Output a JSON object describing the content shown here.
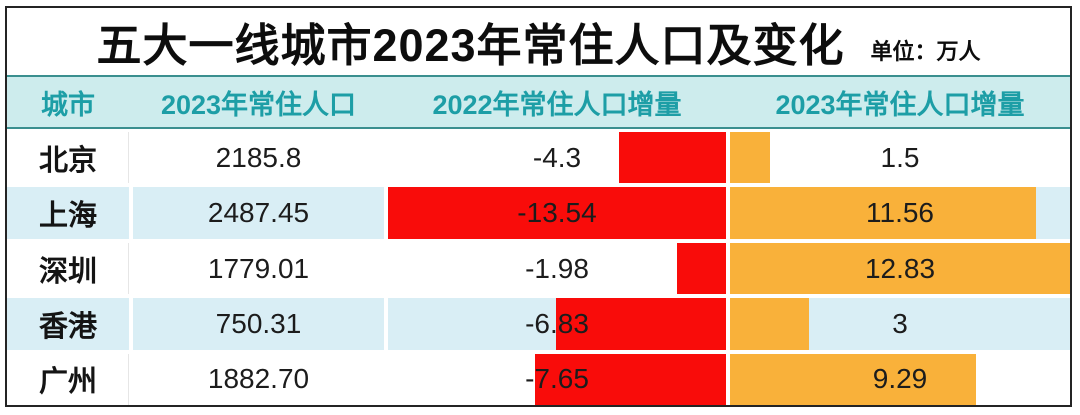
{
  "title": {
    "text": "五大一线城市2023年常住人口及变化",
    "unit": "单位：万人"
  },
  "table": {
    "headers": [
      "城市",
      "2023年常住人口",
      "2022年常住人口增量",
      "2023年常住人口增量"
    ],
    "max_abs_2022": 13.54,
    "max_abs_2023": 12.83,
    "rows": [
      {
        "city": "北京",
        "population": "2185.8",
        "inc2022": -4.3,
        "inc2022_label": "-4.3",
        "inc2023": 1.5,
        "inc2023_label": "1.5"
      },
      {
        "city": "上海",
        "population": "2487.45",
        "inc2022": -13.54,
        "inc2022_label": "-13.54",
        "inc2023": 11.56,
        "inc2023_label": "11.56"
      },
      {
        "city": "深圳",
        "population": "1779.01",
        "inc2022": -1.98,
        "inc2022_label": "-1.98",
        "inc2023": 12.83,
        "inc2023_label": "12.83"
      },
      {
        "city": "香港",
        "population": "750.31",
        "inc2022": -6.83,
        "inc2022_label": "-6.83",
        "inc2023": 3,
        "inc2023_label": "3"
      },
      {
        "city": "广州",
        "population": "1882.70",
        "inc2022": -7.65,
        "inc2022_label": "-7.65",
        "inc2023": 9.29,
        "inc2023_label": "9.29"
      }
    ]
  },
  "colors": {
    "negative_bar": "#f90c0a",
    "positive_bar": "#f9b13a",
    "header_bg": "#cdeced",
    "header_text": "#1d9ea6",
    "header_border": "#3a8f8f",
    "alt_row_bg": "#d9eef5",
    "outer_border": "#242424"
  },
  "chart_data": {
    "type": "table",
    "title": "五大一线城市2023年常住人口及变化",
    "unit": "万人",
    "columns": [
      "城市",
      "2023年常住人口",
      "2022年常住人口增量",
      "2023年常住人口增量"
    ],
    "categories": [
      "北京",
      "上海",
      "深圳",
      "香港",
      "广州"
    ],
    "series": [
      {
        "name": "2023年常住人口",
        "values": [
          2185.8,
          2487.45,
          1779.01,
          750.31,
          1882.7
        ],
        "display": "text"
      },
      {
        "name": "2022年常住人口增量",
        "values": [
          -4.3,
          -13.54,
          -1.98,
          -6.83,
          -7.65
        ],
        "display": "bar-right-anchored",
        "bar_color": "#f90c0a",
        "scale_max_abs": 13.54
      },
      {
        "name": "2023年常住人口增量",
        "values": [
          1.5,
          11.56,
          12.83,
          3,
          9.29
        ],
        "display": "bar-left-anchored",
        "bar_color": "#f9b13a",
        "scale_max_abs": 12.83
      }
    ],
    "layout": {
      "bar_baseline": "column-edge",
      "row_striping": [
        "white",
        "lightblue"
      ],
      "legend": "none",
      "grid": "off"
    }
  }
}
